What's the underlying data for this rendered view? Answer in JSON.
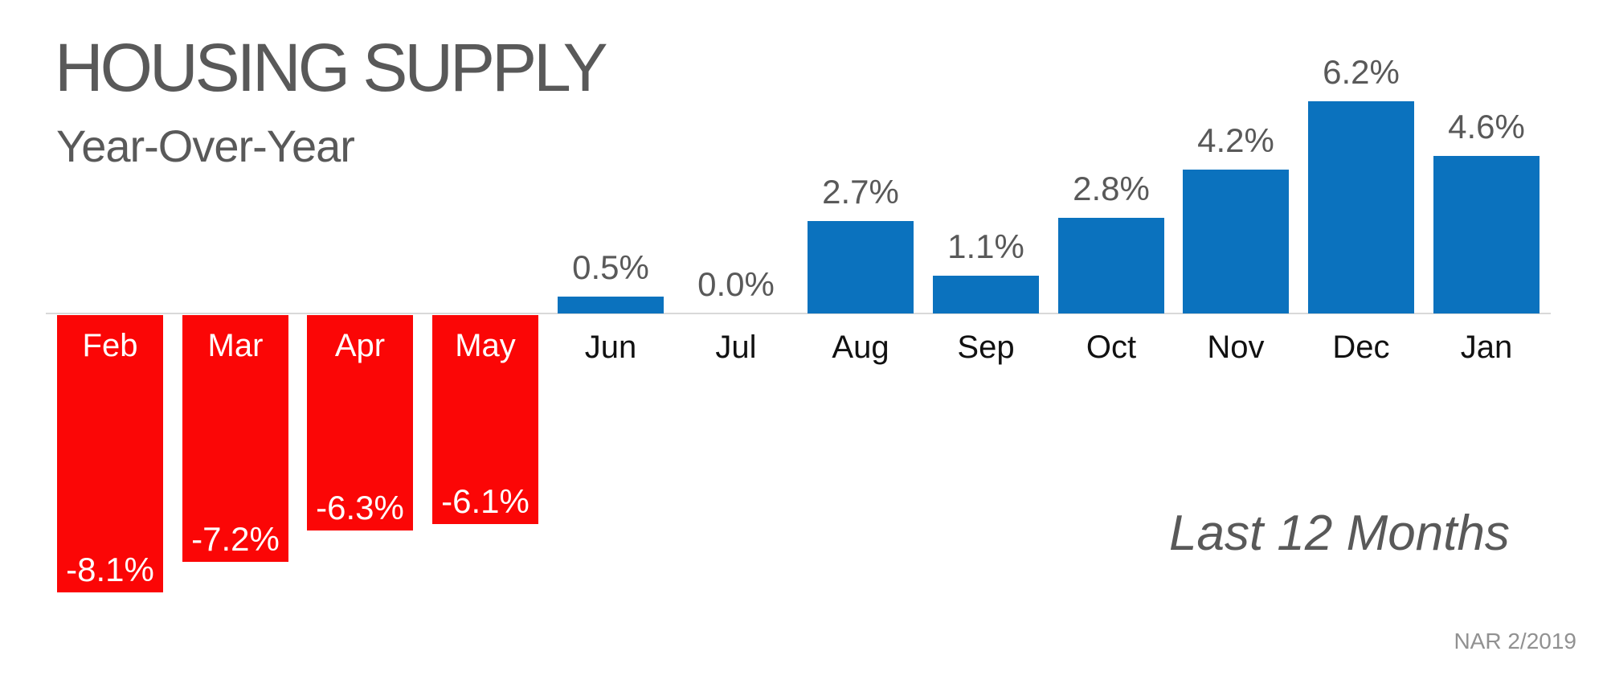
{
  "header": {
    "title": "HOUSING SUPPLY",
    "subtitle": "Year-Over-Year"
  },
  "annotations": {
    "period_label": "Last 12 Months",
    "source_label": "NAR 2/2019"
  },
  "colors": {
    "positive_bar": "#0b72be",
    "negative_bar": "#fb0606",
    "axis_line": "#d9d9d9",
    "title_text": "#595959",
    "value_label_text": "#595959",
    "month_label_dark": "#111111",
    "month_label_light": "#ffffff",
    "source_text": "#919191"
  },
  "chart_data": {
    "type": "bar",
    "title": "HOUSING SUPPLY",
    "subtitle": "Year-Over-Year",
    "categories": [
      "Feb",
      "Mar",
      "Apr",
      "May",
      "Jun",
      "Jul",
      "Aug",
      "Sep",
      "Oct",
      "Nov",
      "Dec",
      "Jan"
    ],
    "values": [
      -8.1,
      -7.2,
      -6.3,
      -6.1,
      0.5,
      0.0,
      2.7,
      1.1,
      2.8,
      4.2,
      6.2,
      4.6
    ],
    "value_labels": [
      "-8.1%",
      "-7.2%",
      "-6.3%",
      "-6.1%",
      "0.5%",
      "0.0%",
      "2.7%",
      "1.1%",
      "2.8%",
      "4.2%",
      "6.2%",
      "4.6%"
    ],
    "unit": "%",
    "xlabel": "",
    "ylabel": "",
    "ylim": [
      -8.5,
      6.5
    ],
    "grid": false,
    "legend": false,
    "baseline": 0,
    "positive_color": "#0b72be",
    "negative_color": "#fb0606",
    "label_placement_positive": "outside-end-above-bar",
    "label_placement_negative": "inside-base-white",
    "category_label_placement": "below-axis, white-on-bar-for-negative",
    "annotation": "Last 12 Months",
    "source": "NAR 2/2019"
  }
}
